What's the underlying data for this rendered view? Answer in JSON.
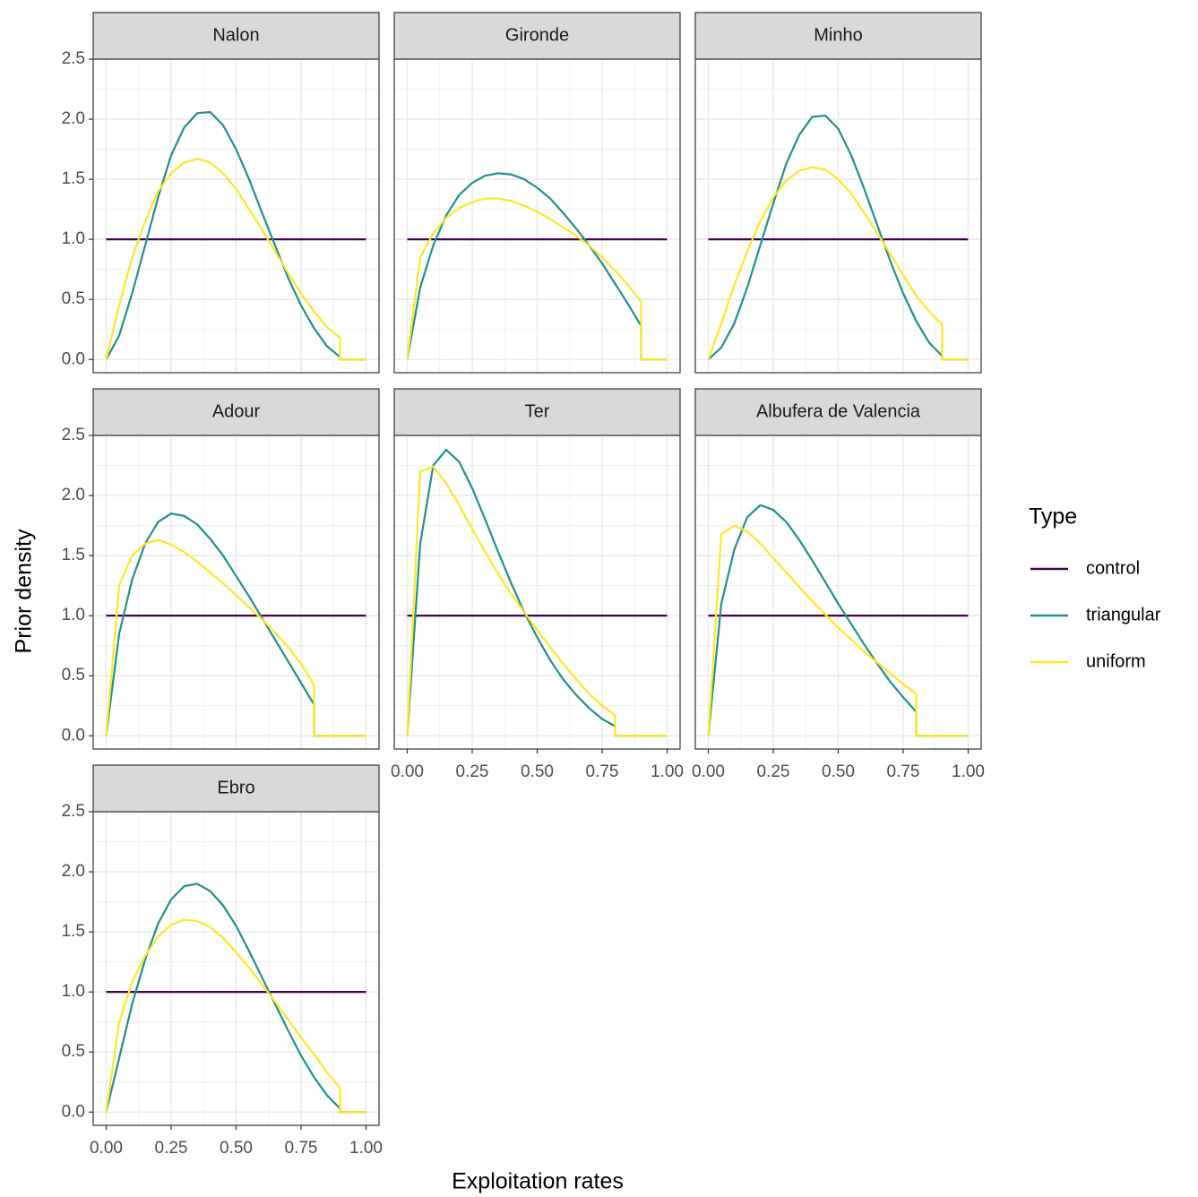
{
  "chart_data": [
    {
      "type": "line",
      "title": "Nalon",
      "xlim": [
        -0.05,
        1.05
      ],
      "ylim": [
        -0.11,
        2.5
      ],
      "grid": true,
      "xticks": [
        {
          "value": 0,
          "label": "0.00"
        },
        {
          "value": 0.25,
          "label": "0.25"
        },
        {
          "value": 0.5,
          "label": "0.50"
        },
        {
          "value": 0.75,
          "label": "0.75"
        },
        {
          "value": 1,
          "label": "1.00"
        }
      ],
      "yticks": [
        {
          "value": 0,
          "label": "0.0"
        },
        {
          "value": 0.5,
          "label": "0.5"
        },
        {
          "value": 1,
          "label": "1.0"
        },
        {
          "value": 1.5,
          "label": "1.5"
        },
        {
          "value": 2,
          "label": "2.0"
        },
        {
          "value": 2.5,
          "label": "2.5"
        }
      ],
      "x": [
        0,
        0.05,
        0.1,
        0.15,
        0.2,
        0.25,
        0.3,
        0.35,
        0.4,
        0.45,
        0.5,
        0.55,
        0.6,
        0.65,
        0.7,
        0.75,
        0.8,
        0.85,
        0.9,
        0.9,
        1
      ],
      "series": [
        {
          "name": "control",
          "color": "#440154",
          "values": [
            1,
            1,
            1,
            1,
            1,
            1,
            1,
            1,
            1,
            1,
            1,
            1,
            1,
            1,
            1,
            1,
            1,
            1,
            1,
            1,
            1
          ]
        },
        {
          "name": "triangular",
          "color": "#21908C",
          "values": [
            0,
            0.2,
            0.55,
            0.95,
            1.35,
            1.7,
            1.93,
            2.05,
            2.06,
            1.95,
            1.75,
            1.5,
            1.22,
            0.95,
            0.68,
            0.45,
            0.26,
            0.11,
            0.02,
            0,
            0
          ]
        },
        {
          "name": "uniform",
          "color": "#FDE725",
          "values": [
            0,
            0.45,
            0.85,
            1.15,
            1.4,
            1.55,
            1.64,
            1.67,
            1.64,
            1.55,
            1.42,
            1.25,
            1.08,
            0.9,
            0.72,
            0.55,
            0.4,
            0.27,
            0.18,
            0,
            0
          ]
        }
      ]
    },
    {
      "type": "line",
      "title": "Gironde",
      "xlim": [
        -0.05,
        1.05
      ],
      "ylim": [
        -0.11,
        2.5
      ],
      "grid": true,
      "xticks": [
        {
          "value": 0,
          "label": "0.00"
        },
        {
          "value": 0.25,
          "label": "0.25"
        },
        {
          "value": 0.5,
          "label": "0.50"
        },
        {
          "value": 0.75,
          "label": "0.75"
        },
        {
          "value": 1,
          "label": "1.00"
        }
      ],
      "yticks": [
        {
          "value": 0,
          "label": "0.0"
        },
        {
          "value": 0.5,
          "label": "0.5"
        },
        {
          "value": 1,
          "label": "1.0"
        },
        {
          "value": 1.5,
          "label": "1.5"
        },
        {
          "value": 2,
          "label": "2.0"
        },
        {
          "value": 2.5,
          "label": "2.5"
        }
      ],
      "x": [
        0,
        0.05,
        0.1,
        0.15,
        0.2,
        0.25,
        0.3,
        0.35,
        0.4,
        0.45,
        0.5,
        0.55,
        0.6,
        0.65,
        0.7,
        0.75,
        0.8,
        0.85,
        0.9,
        0.9,
        1
      ],
      "series": [
        {
          "name": "control",
          "color": "#440154",
          "values": [
            1,
            1,
            1,
            1,
            1,
            1,
            1,
            1,
            1,
            1,
            1,
            1,
            1,
            1,
            1,
            1,
            1,
            1,
            1,
            1,
            1
          ]
        },
        {
          "name": "triangular",
          "color": "#21908C",
          "values": [
            0,
            0.6,
            0.95,
            1.2,
            1.37,
            1.47,
            1.53,
            1.55,
            1.54,
            1.5,
            1.43,
            1.34,
            1.22,
            1.09,
            0.95,
            0.8,
            0.63,
            0.46,
            0.28,
            0,
            0
          ]
        },
        {
          "name": "uniform",
          "color": "#FDE725",
          "values": [
            0,
            0.85,
            1.05,
            1.18,
            1.26,
            1.31,
            1.34,
            1.34,
            1.32,
            1.28,
            1.23,
            1.17,
            1.1,
            1.03,
            0.95,
            0.85,
            0.74,
            0.62,
            0.48,
            0,
            0
          ]
        }
      ]
    },
    {
      "type": "line",
      "title": "Minho",
      "xlim": [
        -0.05,
        1.05
      ],
      "ylim": [
        -0.11,
        2.5
      ],
      "grid": true,
      "xticks": [
        {
          "value": 0,
          "label": "0.00"
        },
        {
          "value": 0.25,
          "label": "0.25"
        },
        {
          "value": 0.5,
          "label": "0.50"
        },
        {
          "value": 0.75,
          "label": "0.75"
        },
        {
          "value": 1,
          "label": "1.00"
        }
      ],
      "yticks": [
        {
          "value": 0,
          "label": "0.0"
        },
        {
          "value": 0.5,
          "label": "0.5"
        },
        {
          "value": 1,
          "label": "1.0"
        },
        {
          "value": 1.5,
          "label": "1.5"
        },
        {
          "value": 2,
          "label": "2.0"
        },
        {
          "value": 2.5,
          "label": "2.5"
        }
      ],
      "x": [
        0,
        0.05,
        0.1,
        0.15,
        0.2,
        0.25,
        0.3,
        0.35,
        0.4,
        0.45,
        0.5,
        0.55,
        0.6,
        0.65,
        0.7,
        0.75,
        0.8,
        0.85,
        0.9,
        0.9,
        1
      ],
      "series": [
        {
          "name": "control",
          "color": "#440154",
          "values": [
            1,
            1,
            1,
            1,
            1,
            1,
            1,
            1,
            1,
            1,
            1,
            1,
            1,
            1,
            1,
            1,
            1,
            1,
            1,
            1,
            1
          ]
        },
        {
          "name": "triangular",
          "color": "#21908C",
          "values": [
            0,
            0.1,
            0.3,
            0.6,
            0.95,
            1.3,
            1.63,
            1.87,
            2.02,
            2.03,
            1.92,
            1.7,
            1.42,
            1.12,
            0.82,
            0.55,
            0.32,
            0.14,
            0.03,
            0,
            0
          ]
        },
        {
          "name": "uniform",
          "color": "#FDE725",
          "values": [
            0,
            0.3,
            0.62,
            0.9,
            1.15,
            1.35,
            1.49,
            1.57,
            1.6,
            1.58,
            1.5,
            1.38,
            1.22,
            1.05,
            0.88,
            0.7,
            0.53,
            0.4,
            0.29,
            0,
            0
          ]
        }
      ]
    },
    {
      "type": "line",
      "title": "Adour",
      "xlim": [
        -0.05,
        1.05
      ],
      "ylim": [
        -0.11,
        2.5
      ],
      "grid": true,
      "xticks": [
        {
          "value": 0,
          "label": "0.00"
        },
        {
          "value": 0.25,
          "label": "0.25"
        },
        {
          "value": 0.5,
          "label": "0.50"
        },
        {
          "value": 0.75,
          "label": "0.75"
        },
        {
          "value": 1,
          "label": "1.00"
        }
      ],
      "yticks": [
        {
          "value": 0,
          "label": "0.0"
        },
        {
          "value": 0.5,
          "label": "0.5"
        },
        {
          "value": 1,
          "label": "1.0"
        },
        {
          "value": 1.5,
          "label": "1.5"
        },
        {
          "value": 2,
          "label": "2.0"
        },
        {
          "value": 2.5,
          "label": "2.5"
        }
      ],
      "x": [
        0,
        0.05,
        0.1,
        0.15,
        0.2,
        0.25,
        0.3,
        0.35,
        0.4,
        0.45,
        0.5,
        0.55,
        0.6,
        0.65,
        0.7,
        0.75,
        0.8,
        0.8,
        1
      ],
      "series": [
        {
          "name": "control",
          "color": "#440154",
          "values": [
            1,
            1,
            1,
            1,
            1,
            1,
            1,
            1,
            1,
            1,
            1,
            1,
            1,
            1,
            1,
            1,
            1,
            1,
            1
          ]
        },
        {
          "name": "triangular",
          "color": "#21908C",
          "values": [
            0,
            0.85,
            1.3,
            1.6,
            1.78,
            1.85,
            1.83,
            1.76,
            1.64,
            1.5,
            1.33,
            1.16,
            0.98,
            0.8,
            0.62,
            0.44,
            0.26,
            0,
            0
          ]
        },
        {
          "name": "uniform",
          "color": "#FDE725",
          "values": [
            0,
            1.25,
            1.5,
            1.6,
            1.63,
            1.59,
            1.53,
            1.45,
            1.36,
            1.27,
            1.17,
            1.07,
            0.97,
            0.86,
            0.74,
            0.6,
            0.42,
            0,
            0
          ]
        }
      ]
    },
    {
      "type": "line",
      "title": "Ter",
      "xlim": [
        -0.05,
        1.05
      ],
      "ylim": [
        -0.11,
        2.5
      ],
      "grid": true,
      "xticks": [
        {
          "value": 0,
          "label": "0.00"
        },
        {
          "value": 0.25,
          "label": "0.25"
        },
        {
          "value": 0.5,
          "label": "0.50"
        },
        {
          "value": 0.75,
          "label": "0.75"
        },
        {
          "value": 1,
          "label": "1.00"
        }
      ],
      "yticks": [
        {
          "value": 0,
          "label": "0.0"
        },
        {
          "value": 0.5,
          "label": "0.5"
        },
        {
          "value": 1,
          "label": "1.0"
        },
        {
          "value": 1.5,
          "label": "1.5"
        },
        {
          "value": 2,
          "label": "2.0"
        },
        {
          "value": 2.5,
          "label": "2.5"
        }
      ],
      "x": [
        0,
        0.05,
        0.1,
        0.15,
        0.2,
        0.25,
        0.3,
        0.35,
        0.4,
        0.45,
        0.5,
        0.55,
        0.6,
        0.65,
        0.7,
        0.75,
        0.8,
        0.8,
        1
      ],
      "series": [
        {
          "name": "control",
          "color": "#440154",
          "values": [
            1,
            1,
            1,
            1,
            1,
            1,
            1,
            1,
            1,
            1,
            1,
            1,
            1,
            1,
            1,
            1,
            1,
            1,
            1
          ]
        },
        {
          "name": "triangular",
          "color": "#21908C",
          "values": [
            0,
            1.6,
            2.25,
            2.38,
            2.28,
            2.06,
            1.8,
            1.53,
            1.27,
            1.03,
            0.82,
            0.63,
            0.47,
            0.34,
            0.23,
            0.14,
            0.08,
            0,
            0
          ]
        },
        {
          "name": "uniform",
          "color": "#FDE725",
          "values": [
            0,
            2.2,
            2.24,
            2.1,
            1.92,
            1.72,
            1.53,
            1.35,
            1.18,
            1.03,
            0.88,
            0.74,
            0.6,
            0.47,
            0.35,
            0.25,
            0.17,
            0,
            0
          ]
        }
      ]
    },
    {
      "type": "line",
      "title": "Albufera de Valencia",
      "xlim": [
        -0.05,
        1.05
      ],
      "ylim": [
        -0.11,
        2.5
      ],
      "grid": true,
      "xticks": [
        {
          "value": 0,
          "label": "0.00"
        },
        {
          "value": 0.25,
          "label": "0.25"
        },
        {
          "value": 0.5,
          "label": "0.50"
        },
        {
          "value": 0.75,
          "label": "0.75"
        },
        {
          "value": 1,
          "label": "1.00"
        }
      ],
      "yticks": [
        {
          "value": 0,
          "label": "0.0"
        },
        {
          "value": 0.5,
          "label": "0.5"
        },
        {
          "value": 1,
          "label": "1.0"
        },
        {
          "value": 1.5,
          "label": "1.5"
        },
        {
          "value": 2,
          "label": "2.0"
        },
        {
          "value": 2.5,
          "label": "2.5"
        }
      ],
      "x": [
        0,
        0.05,
        0.1,
        0.15,
        0.2,
        0.25,
        0.3,
        0.35,
        0.4,
        0.45,
        0.5,
        0.55,
        0.6,
        0.65,
        0.7,
        0.75,
        0.8,
        0.8,
        1
      ],
      "series": [
        {
          "name": "control",
          "color": "#440154",
          "values": [
            1,
            1,
            1,
            1,
            1,
            1,
            1,
            1,
            1,
            1,
            1,
            1,
            1,
            1,
            1,
            1,
            1,
            1,
            1
          ]
        },
        {
          "name": "triangular",
          "color": "#21908C",
          "values": [
            0,
            1.1,
            1.55,
            1.82,
            1.92,
            1.88,
            1.78,
            1.63,
            1.46,
            1.28,
            1.1,
            0.93,
            0.76,
            0.6,
            0.45,
            0.32,
            0.2,
            0,
            0
          ]
        },
        {
          "name": "uniform",
          "color": "#FDE725",
          "values": [
            0,
            1.68,
            1.75,
            1.7,
            1.6,
            1.48,
            1.36,
            1.24,
            1.12,
            1.01,
            0.9,
            0.8,
            0.7,
            0.61,
            0.52,
            0.43,
            0.35,
            0,
            0
          ]
        }
      ]
    },
    {
      "type": "line",
      "title": "Ebro",
      "xlim": [
        -0.05,
        1.05
      ],
      "ylim": [
        -0.11,
        2.5
      ],
      "grid": true,
      "xticks": [
        {
          "value": 0,
          "label": "0.00"
        },
        {
          "value": 0.25,
          "label": "0.25"
        },
        {
          "value": 0.5,
          "label": "0.50"
        },
        {
          "value": 0.75,
          "label": "0.75"
        },
        {
          "value": 1,
          "label": "1.00"
        }
      ],
      "yticks": [
        {
          "value": 0,
          "label": "0.0"
        },
        {
          "value": 0.5,
          "label": "0.5"
        },
        {
          "value": 1,
          "label": "1.0"
        },
        {
          "value": 1.5,
          "label": "1.5"
        },
        {
          "value": 2,
          "label": "2.0"
        },
        {
          "value": 2.5,
          "label": "2.5"
        }
      ],
      "x": [
        0,
        0.05,
        0.1,
        0.15,
        0.2,
        0.25,
        0.3,
        0.35,
        0.4,
        0.45,
        0.5,
        0.55,
        0.6,
        0.65,
        0.7,
        0.75,
        0.8,
        0.85,
        0.9,
        0.9,
        1
      ],
      "series": [
        {
          "name": "control",
          "color": "#440154",
          "values": [
            1,
            1,
            1,
            1,
            1,
            1,
            1,
            1,
            1,
            1,
            1,
            1,
            1,
            1,
            1,
            1,
            1,
            1,
            1,
            1,
            1
          ]
        },
        {
          "name": "triangular",
          "color": "#21908C",
          "values": [
            0,
            0.45,
            0.9,
            1.27,
            1.57,
            1.77,
            1.88,
            1.9,
            1.84,
            1.72,
            1.55,
            1.34,
            1.12,
            0.9,
            0.68,
            0.47,
            0.29,
            0.14,
            0.03,
            0,
            0
          ]
        },
        {
          "name": "uniform",
          "color": "#FDE725",
          "values": [
            0,
            0.75,
            1.08,
            1.3,
            1.46,
            1.56,
            1.6,
            1.59,
            1.54,
            1.45,
            1.33,
            1.2,
            1.06,
            0.92,
            0.77,
            0.62,
            0.48,
            0.33,
            0.2,
            0,
            0
          ]
        }
      ]
    }
  ],
  "xlabel": "Exploitation rates",
  "ylabel": "Prior density",
  "legend": {
    "title": "Type",
    "position": "right"
  }
}
